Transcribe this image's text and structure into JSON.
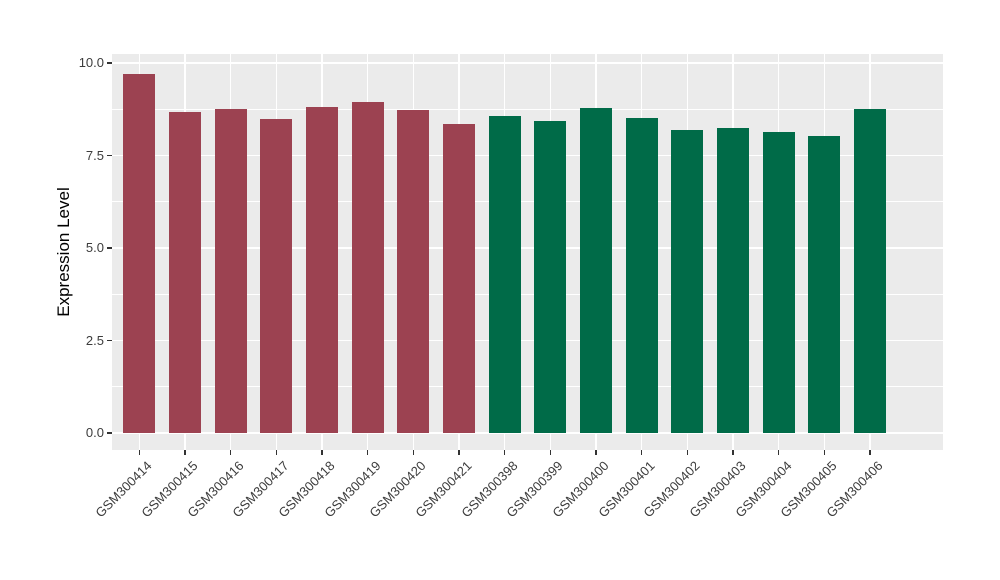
{
  "figure": {
    "background_color": "#FFFFFF",
    "panel_background_color": "#EBEBEB",
    "gridline_color": "#FFFFFF",
    "tick_color": "#333333",
    "axis_text_color": "#3C3C3C",
    "axis_title_color": "#000000",
    "group_colors": {
      "left_group": "#9C4251",
      "right_group": "#006B48"
    }
  },
  "chart_data": {
    "type": "bar",
    "title": "",
    "xlabel": "",
    "ylabel": "Expression Level",
    "categories": [
      "GSM300414",
      "GSM300415",
      "GSM300416",
      "GSM300417",
      "GSM300418",
      "GSM300419",
      "GSM300420",
      "GSM300421",
      "GSM300398",
      "GSM300399",
      "GSM300400",
      "GSM300401",
      "GSM300402",
      "GSM300403",
      "GSM300404",
      "GSM300405",
      "GSM300406"
    ],
    "values": [
      9.69,
      8.67,
      8.77,
      8.48,
      8.82,
      8.94,
      8.74,
      8.34,
      8.58,
      8.42,
      8.79,
      8.51,
      8.18,
      8.23,
      8.13,
      8.03,
      8.76
    ],
    "bar_colors": [
      "#9C4251",
      "#9C4251",
      "#9C4251",
      "#9C4251",
      "#9C4251",
      "#9C4251",
      "#9C4251",
      "#9C4251",
      "#006B48",
      "#006B48",
      "#006B48",
      "#006B48",
      "#006B48",
      "#006B48",
      "#006B48",
      "#006B48",
      "#006B48"
    ],
    "ylim": [
      0,
      10
    ],
    "ytick_values": [
      0,
      2.5,
      5,
      7.5,
      10
    ],
    "ytick_labels": [
      "0.0",
      "2.5",
      "5.0",
      "7.5",
      "10.0"
    ],
    "y_minor_tick_values": [
      1.25,
      3.75,
      6.25,
      8.75
    ],
    "x_label_rotation_deg": 45,
    "grid": "white major and minor horizontal lines plus vertical lines at bar centers, on gray panel",
    "legend_position": "none",
    "bar_relative_width": 0.7
  }
}
